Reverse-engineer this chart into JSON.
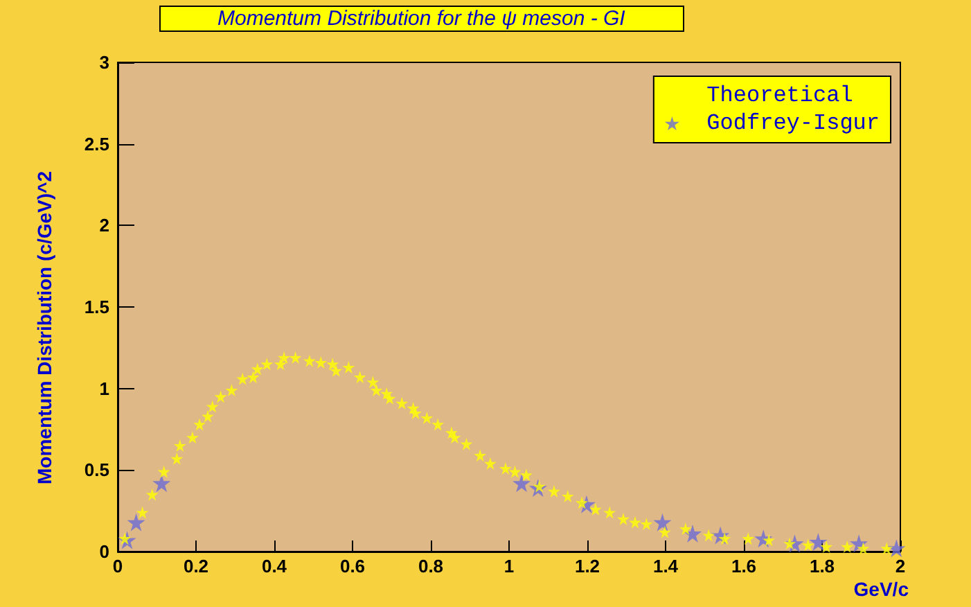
{
  "chart_data": {
    "type": "scatter",
    "title": "Momentum Distribution for the ψ meson - GI",
    "xlabel": "GeV/c",
    "ylabel": "Momentum Distribution (c/GeV)^2",
    "xlim": [
      0,
      2
    ],
    "xticks": [
      0,
      0.2,
      0.4,
      0.6,
      0.8,
      1,
      1.2,
      1.4,
      1.6,
      1.8,
      2
    ],
    "ylim": [
      0,
      3
    ],
    "yticks": [
      0,
      0.5,
      1,
      1.5,
      2,
      2.5,
      3
    ],
    "grid": false,
    "legend": "top right",
    "marker": "star",
    "series": [
      {
        "name": "Godfrey-Isgur",
        "color": "#6b6bd6",
        "x": [
          0.024,
          0.047,
          0.112,
          1.032,
          1.074,
          1.198,
          1.392,
          1.469,
          1.54,
          1.65,
          1.73,
          1.79,
          1.894,
          1.99
        ],
        "values": [
          0.07,
          0.18,
          0.42,
          0.42,
          0.39,
          0.29,
          0.18,
          0.11,
          0.1,
          0.08,
          0.05,
          0.06,
          0.05,
          0.02
        ]
      },
      {
        "name": "Theoretical",
        "color": "#ffff00",
        "x": [
          0.018,
          0.063,
          0.088,
          0.118,
          0.151,
          0.159,
          0.191,
          0.209,
          0.23,
          0.242,
          0.263,
          0.291,
          0.319,
          0.346,
          0.357,
          0.381,
          0.416,
          0.425,
          0.454,
          0.49,
          0.519,
          0.549,
          0.558,
          0.59,
          0.619,
          0.652,
          0.661,
          0.687,
          0.695,
          0.726,
          0.755,
          0.761,
          0.79,
          0.818,
          0.853,
          0.861,
          0.891,
          0.926,
          0.952,
          0.991,
          1.015,
          1.044,
          1.077,
          1.115,
          1.15,
          1.186,
          1.221,
          1.257,
          1.292,
          1.322,
          1.351,
          1.398,
          1.451,
          1.51,
          1.551,
          1.611,
          1.664,
          1.717,
          1.764,
          1.811,
          1.864,
          1.905,
          1.965
        ],
        "values": [
          0.08,
          0.24,
          0.35,
          0.49,
          0.57,
          0.65,
          0.7,
          0.78,
          0.83,
          0.89,
          0.95,
          0.99,
          1.06,
          1.07,
          1.12,
          1.15,
          1.15,
          1.19,
          1.19,
          1.17,
          1.16,
          1.15,
          1.11,
          1.13,
          1.07,
          1.04,
          0.99,
          0.97,
          0.94,
          0.91,
          0.88,
          0.85,
          0.82,
          0.78,
          0.73,
          0.7,
          0.66,
          0.59,
          0.54,
          0.51,
          0.49,
          0.47,
          0.4,
          0.37,
          0.34,
          0.3,
          0.26,
          0.24,
          0.2,
          0.18,
          0.17,
          0.12,
          0.14,
          0.1,
          0.08,
          0.08,
          0.07,
          0.05,
          0.04,
          0.03,
          0.03,
          0.02,
          0.02
        ]
      }
    ]
  }
}
